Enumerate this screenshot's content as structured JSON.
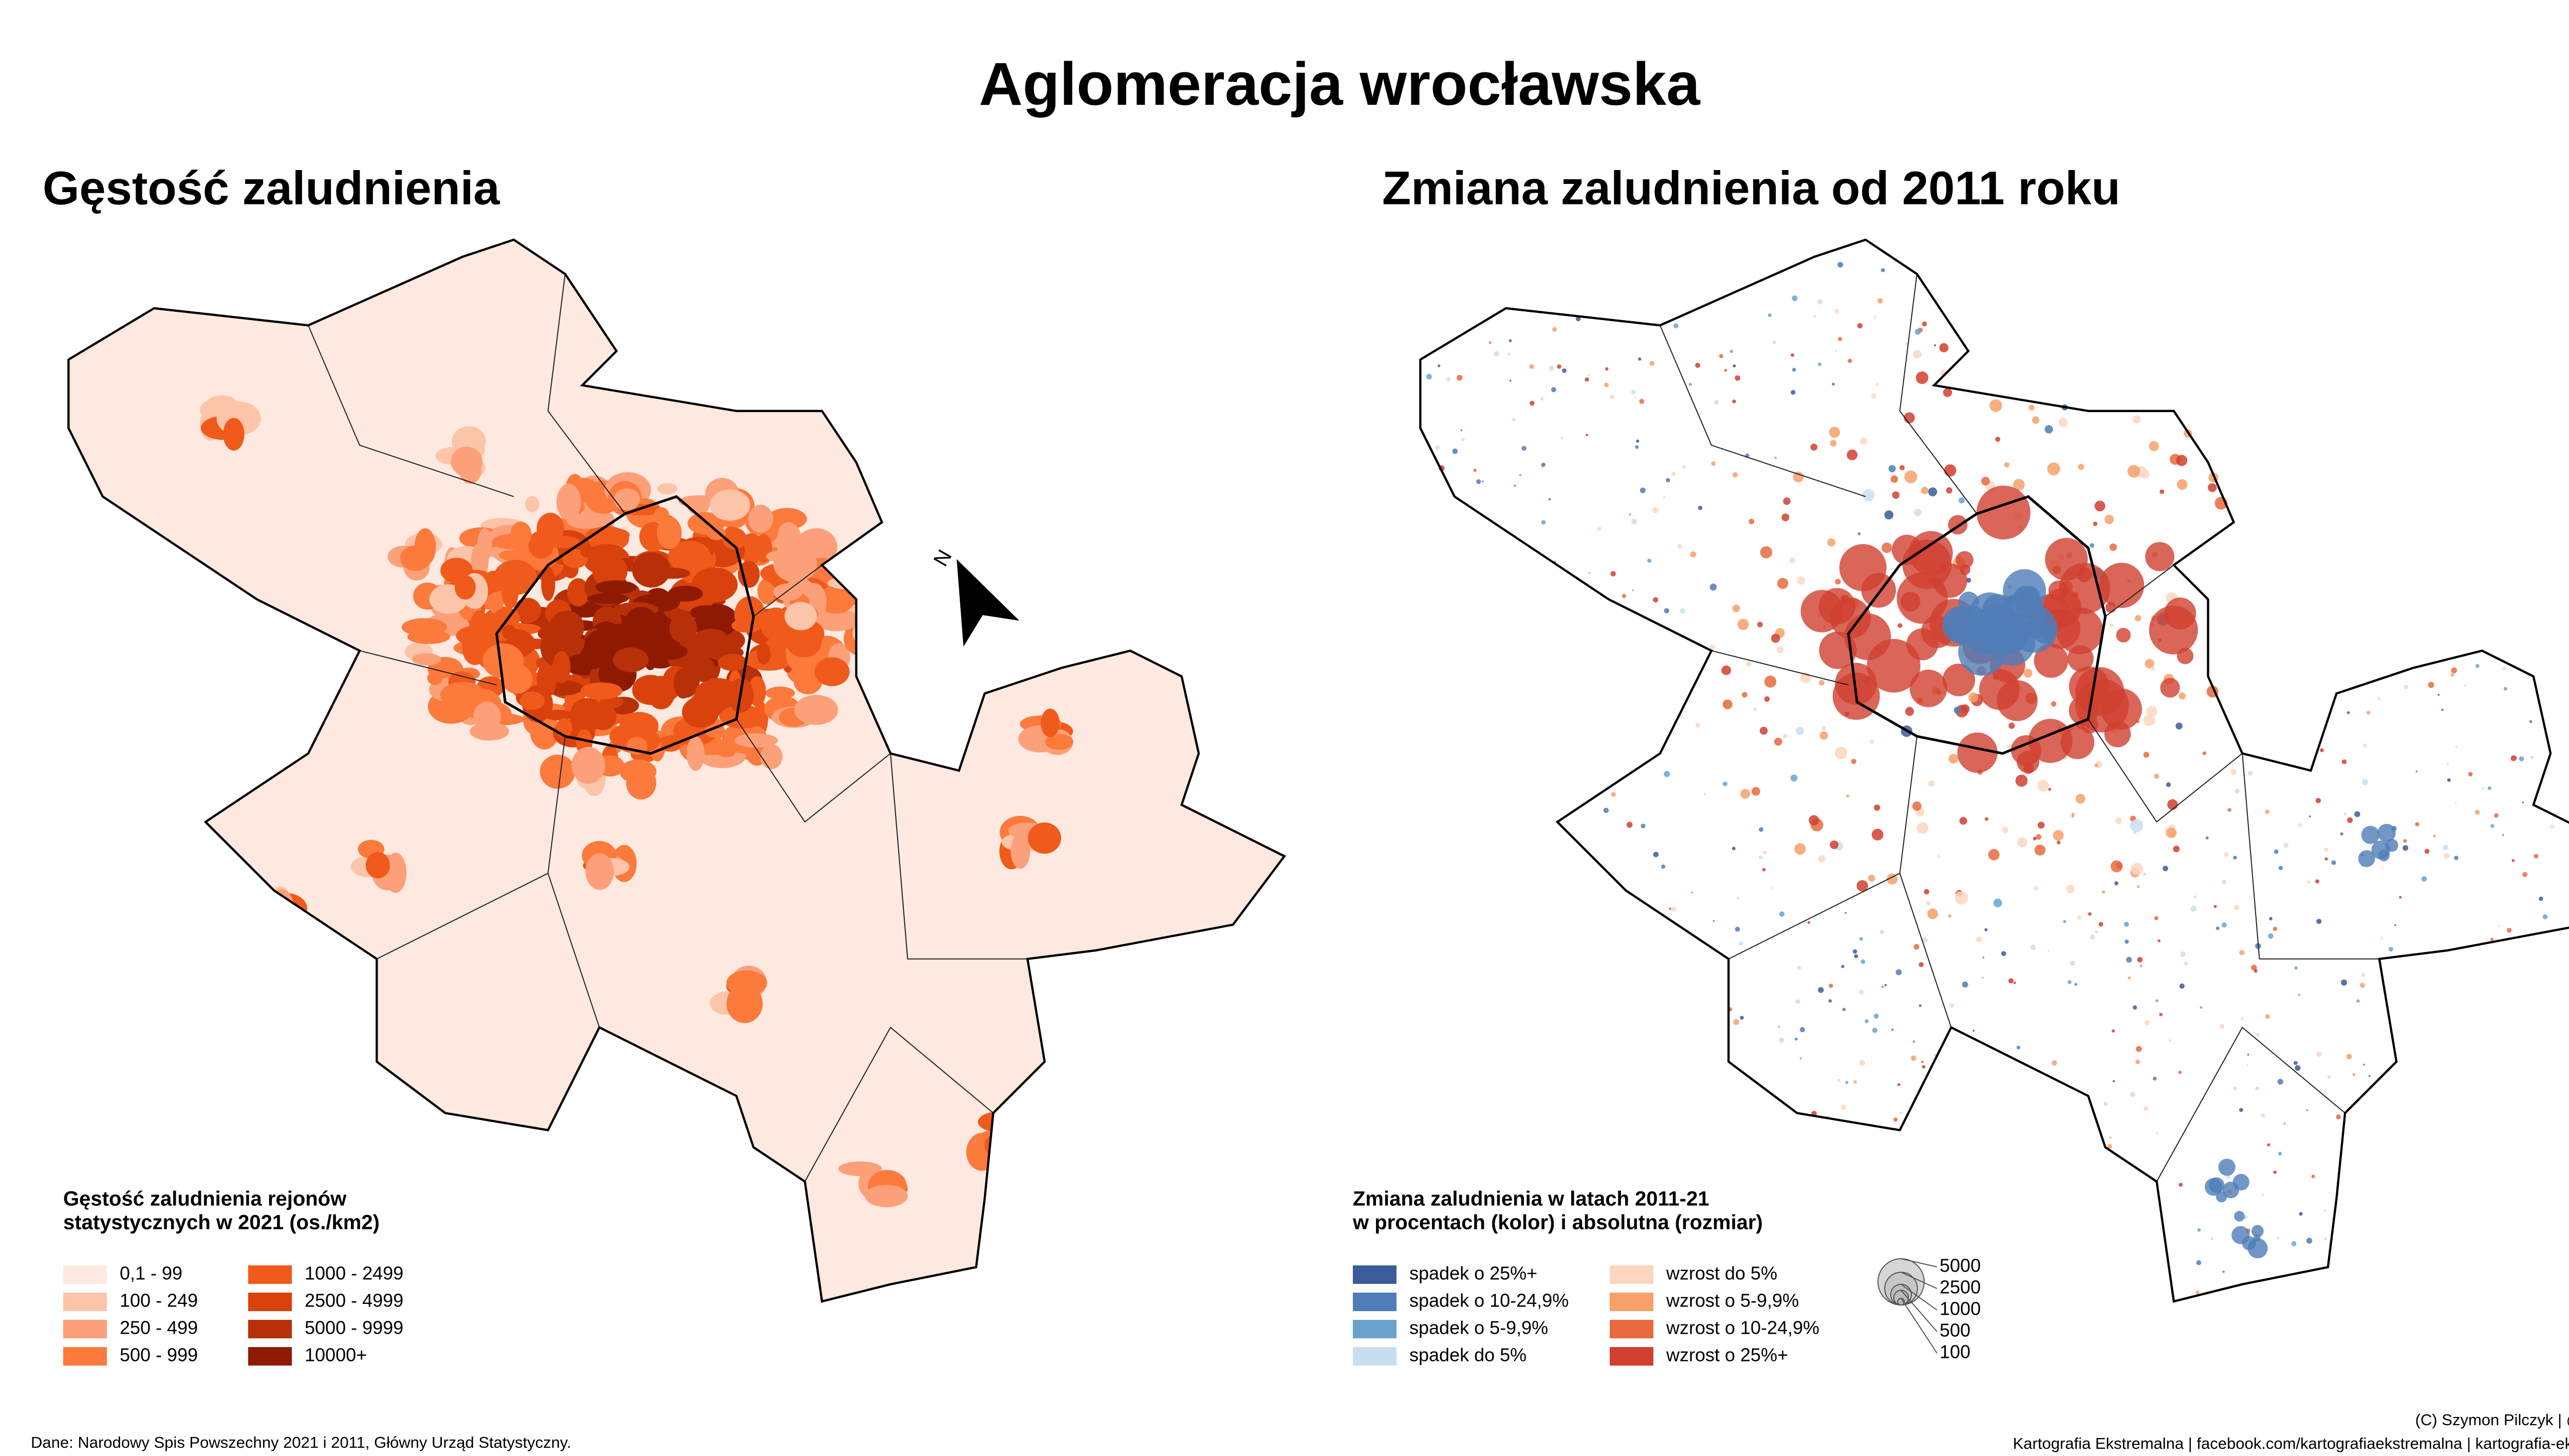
{
  "title": "Aglomeracja wrocławska",
  "left_map": {
    "title": "Gęstość zaludnienia",
    "legend": {
      "title_lines": [
        "Gęstość zaludnienia rejonów",
        "statystycznych w 2021 (os./km2)"
      ],
      "items": [
        {
          "label": "0,1 - 99",
          "color": "#fde9e0"
        },
        {
          "label": "100 - 249",
          "color": "#fcc4a8"
        },
        {
          "label": "250 - 499",
          "color": "#fca07a"
        },
        {
          "label": "500 - 999",
          "color": "#fb7a3c"
        },
        {
          "label": "1000 - 2499",
          "color": "#f05a1a"
        },
        {
          "label": "2500 - 4999",
          "color": "#d9420c"
        },
        {
          "label": "5000 - 9999",
          "color": "#b83008"
        },
        {
          "label": "10000+",
          "color": "#8f1a04"
        }
      ]
    }
  },
  "right_map": {
    "title": "Zmiana zaludnienia od 2011 roku",
    "legend": {
      "title_lines": [
        "Zmiana zaludnienia w latach 2011-21",
        "w procentach (kolor) i absolutna (rozmiar)"
      ],
      "items": [
        {
          "label": "spadek o 25%+",
          "color": "#3b5b9a"
        },
        {
          "label": "spadek o 10-24,9%",
          "color": "#4f7db8"
        },
        {
          "label": "spadek o 5-9,9%",
          "color": "#6aa3d0"
        },
        {
          "label": "spadek do 5%",
          "color": "#c9dff0"
        },
        {
          "label": "wzrost do 5%",
          "color": "#fdd6c0"
        },
        {
          "label": "wzrost o 5-9,9%",
          "color": "#f7a068"
        },
        {
          "label": "wzrost o 10-24,9%",
          "color": "#e86a3e"
        },
        {
          "label": "wzrost o 25%+",
          "color": "#d04030"
        }
      ],
      "size_legend": [
        5000,
        2500,
        1000,
        500,
        100
      ]
    }
  },
  "north_label": "N",
  "footer": {
    "source": "Dane: Narodowy Spis Powszechny 2021 i 2011, Główny Urząd Statystyczny.",
    "credits": [
      "(C) Szymon Pilczyk | @sheemawn",
      "Kartografia Ekstremalna | facebook.com/kartografiaekstremalna | kartografia-ekstremalna.pl"
    ]
  }
}
